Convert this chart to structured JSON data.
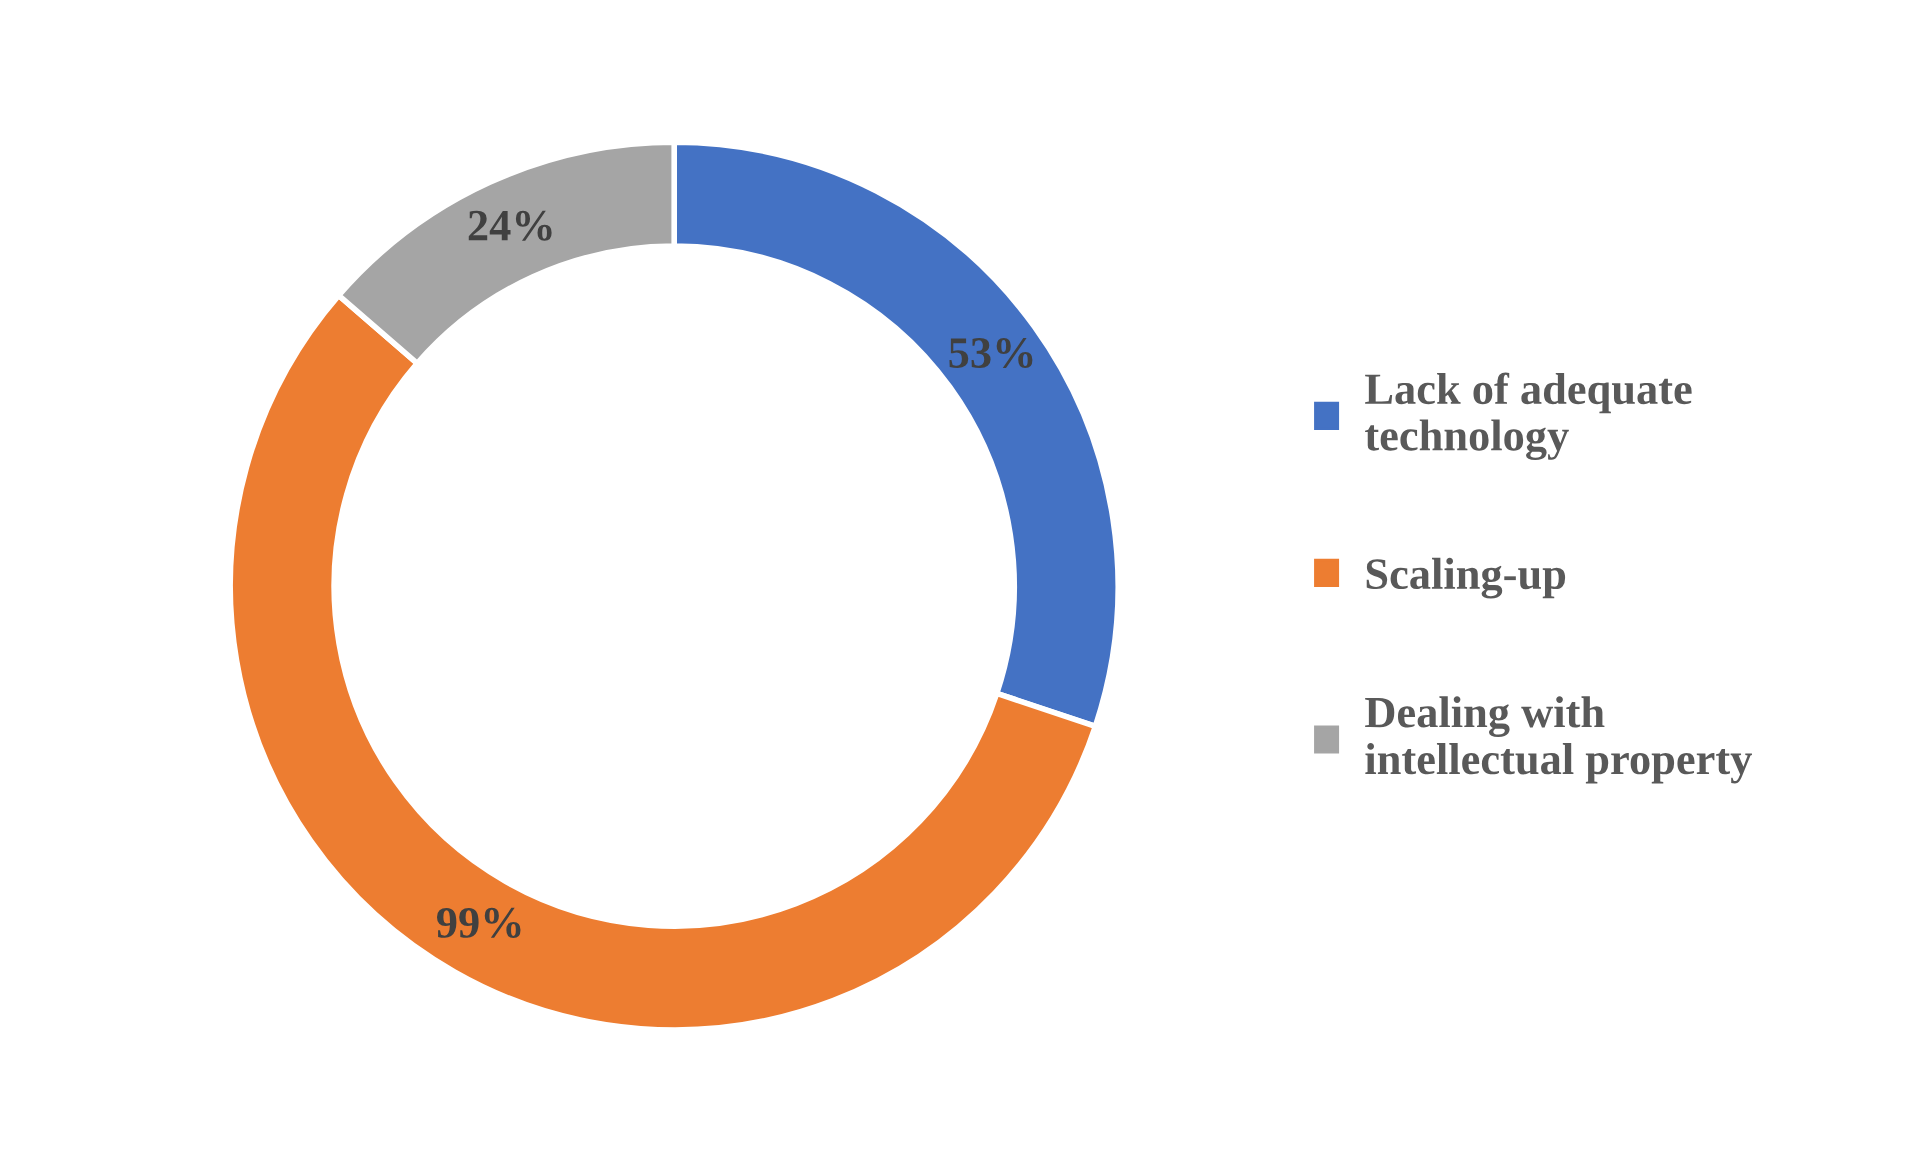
{
  "chart_data": {
    "type": "donut",
    "categories": [
      "Lack of adequate\ntechnology",
      "Scaling-up",
      "Dealing with\nintellectual property"
    ],
    "values": [
      53,
      99,
      24
    ],
    "colors": [
      "#4472c4",
      "#ed7d31",
      "#a5a5a5"
    ],
    "value_labels": [
      "53%",
      "99%",
      "24%"
    ],
    "legend": "right"
  }
}
